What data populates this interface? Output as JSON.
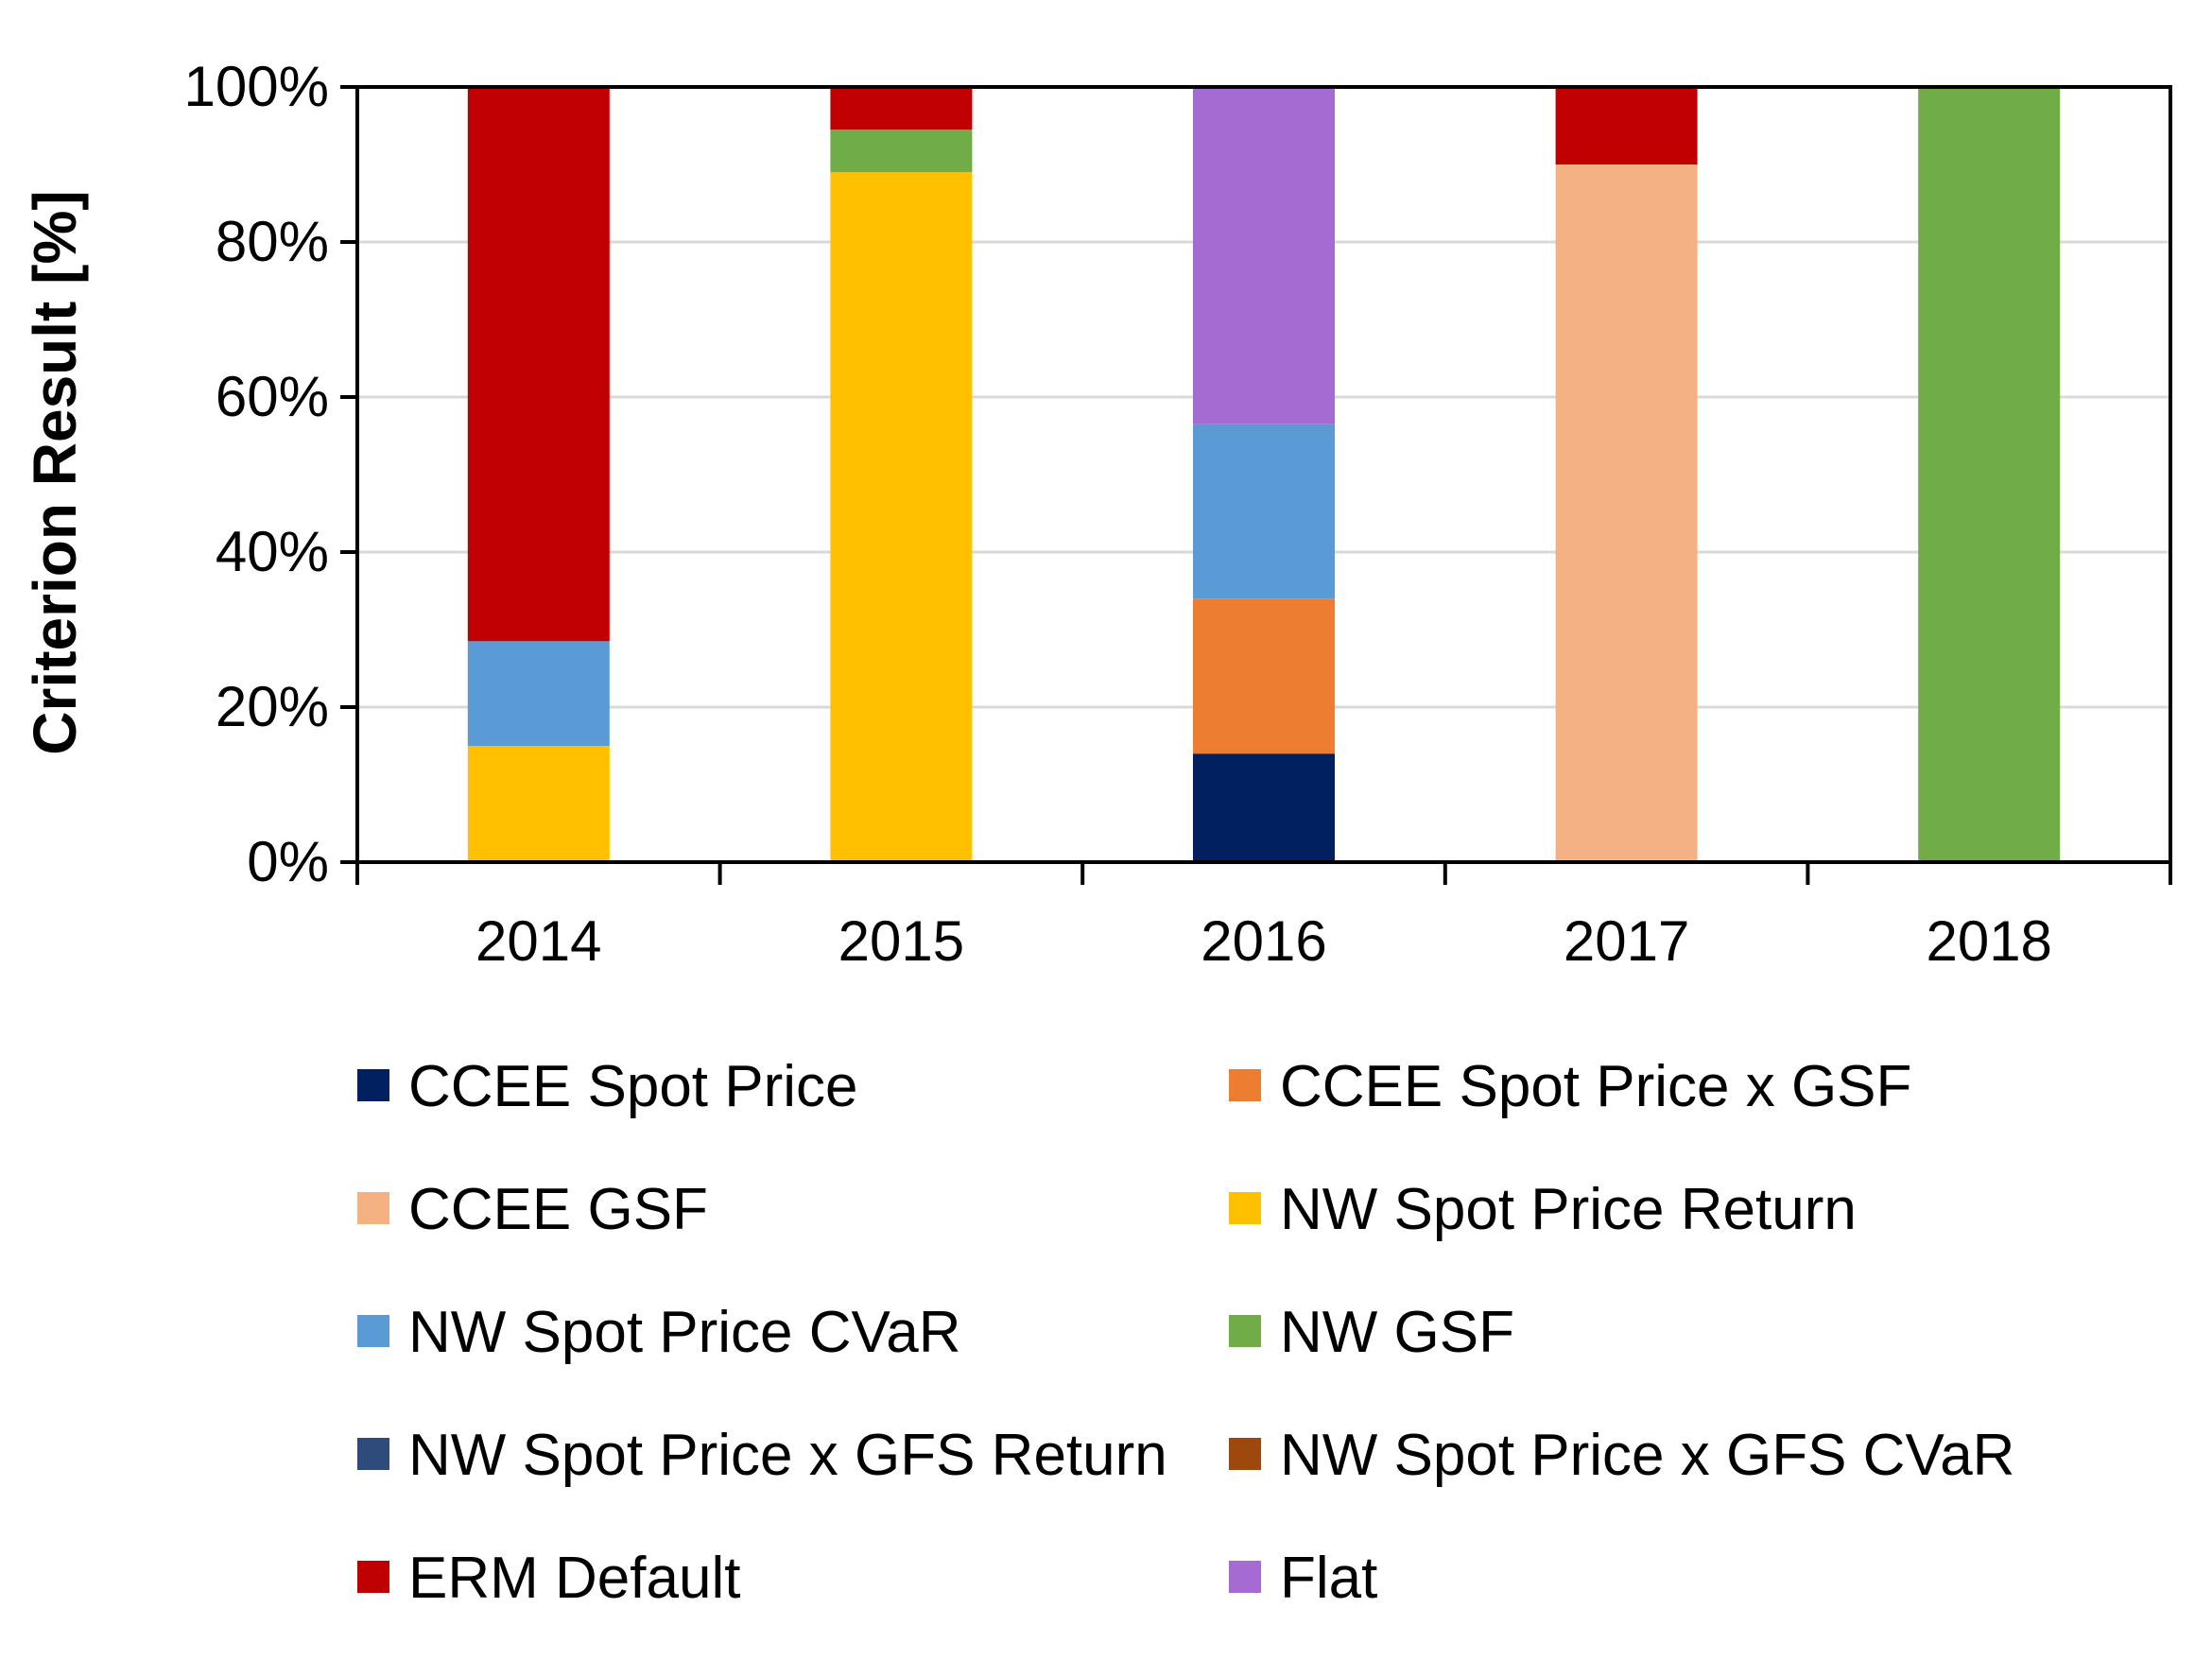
{
  "chart_data": {
    "type": "bar",
    "stacked": true,
    "title": "",
    "xlabel": "",
    "ylabel": "Criterion Result [%]",
    "ylim": [
      0,
      100
    ],
    "y_ticks": [
      "0%",
      "20%",
      "40%",
      "60%",
      "80%",
      "100%"
    ],
    "y_tick_values": [
      0,
      20,
      40,
      60,
      80,
      100
    ],
    "grid": true,
    "legend_position": "bottom",
    "categories": [
      "2014",
      "2015",
      "2016",
      "2017",
      "2018"
    ],
    "series": [
      {
        "name": "CCEE Spot Price",
        "color": "#002060",
        "values": [
          0,
          0,
          14,
          0,
          0
        ]
      },
      {
        "name": "CCEE Spot Price x GSF",
        "color": "#ED7D31",
        "values": [
          0,
          0,
          20,
          0,
          0
        ]
      },
      {
        "name": "CCEE GSF",
        "color": "#F4B183",
        "values": [
          0,
          0,
          0,
          90,
          0
        ]
      },
      {
        "name": "NW Spot Price Return",
        "color": "#FFC000",
        "values": [
          15,
          89,
          0,
          0,
          0
        ]
      },
      {
        "name": "NW Spot Price CVaR",
        "color": "#5B9BD5",
        "values": [
          13.5,
          0,
          22.5,
          0,
          0
        ]
      },
      {
        "name": "NW GSF",
        "color": "#70AD47",
        "values": [
          0,
          5.5,
          0,
          0,
          100
        ]
      },
      {
        "name": "NW Spot Price x GFS Return",
        "color": "#2F4B7C",
        "values": [
          0,
          0,
          0,
          0,
          0
        ]
      },
      {
        "name": "NW Spot Price x GFS CVaR",
        "color": "#9E480E",
        "values": [
          0,
          0,
          0,
          0,
          0
        ]
      },
      {
        "name": "ERM Default",
        "color": "#C00000",
        "values": [
          71.5,
          5.5,
          0,
          10,
          0
        ]
      },
      {
        "name": "Flat",
        "color": "#A66BD3",
        "values": [
          0,
          0,
          43.5,
          0,
          0
        ]
      }
    ]
  }
}
